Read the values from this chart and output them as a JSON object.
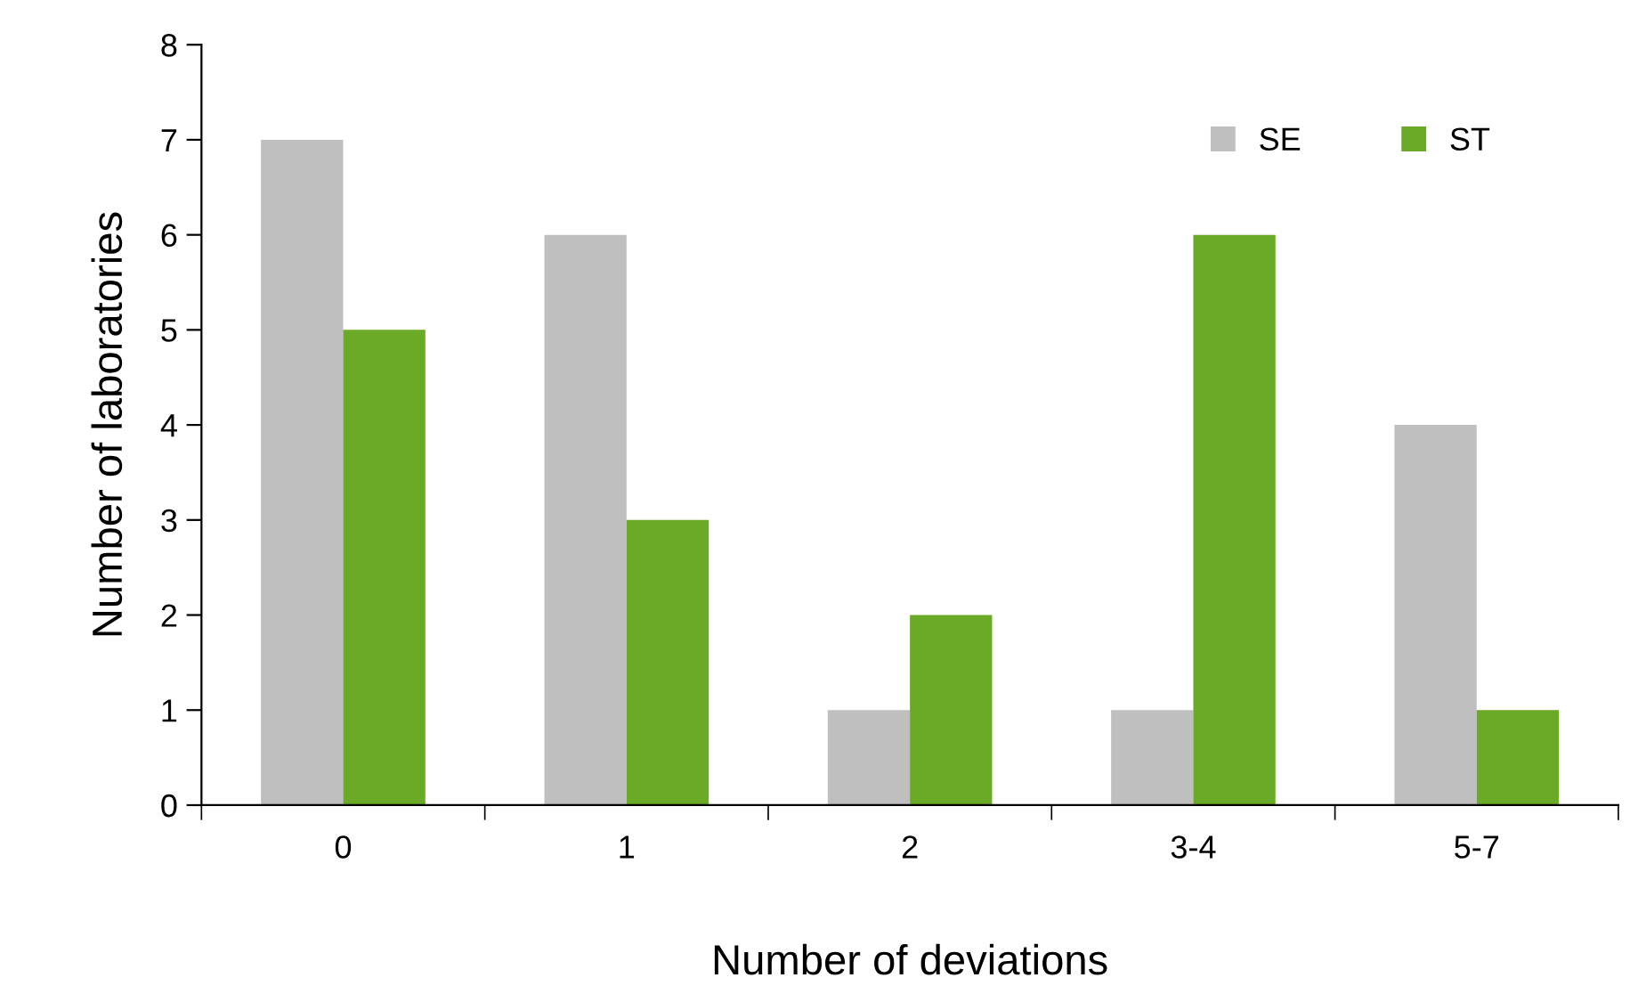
{
  "chart_data": {
    "type": "bar",
    "xlabel": "Number of deviations",
    "ylabel": "Number of laboratories",
    "categories": [
      "0",
      "1",
      "2",
      "3-4",
      "5-7"
    ],
    "series": [
      {
        "name": "SE",
        "color": "#bfbfbf",
        "values": [
          7,
          6,
          1,
          1,
          4
        ]
      },
      {
        "name": "ST",
        "color": "#6aaa27",
        "values": [
          5,
          3,
          2,
          6,
          1
        ]
      }
    ],
    "ylim": [
      0,
      8
    ],
    "yticks": [
      0,
      1,
      2,
      3,
      4,
      5,
      6,
      7,
      8
    ],
    "grid": false,
    "legend": "top right"
  }
}
